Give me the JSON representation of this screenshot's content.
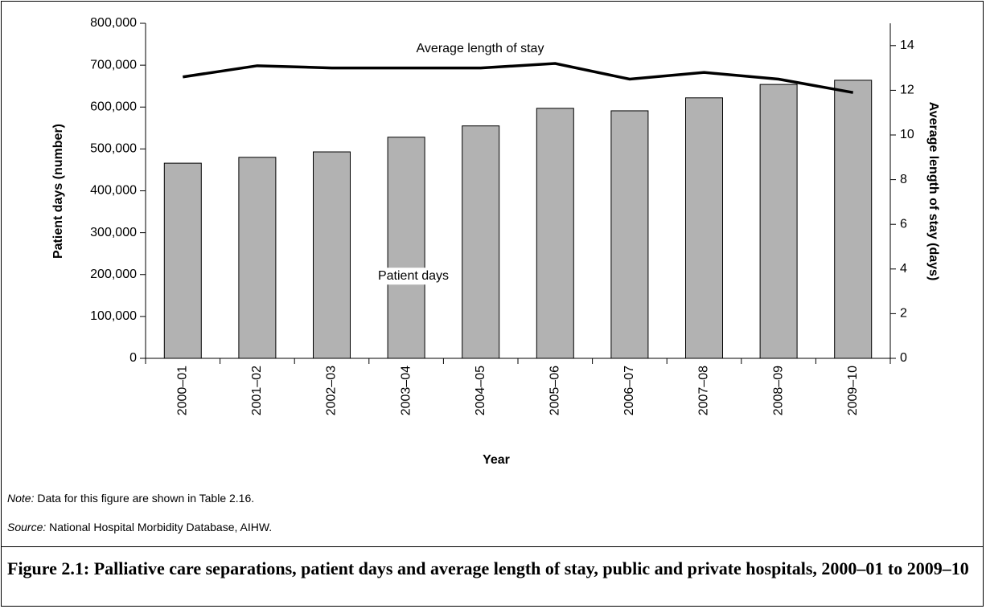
{
  "chart_data": {
    "type": "bar-line",
    "categories": [
      "2000–01",
      "2001–02",
      "2002–03",
      "2003–04",
      "2004–05",
      "2005–06",
      "2006–07",
      "2007–08",
      "2008–09",
      "2009–10"
    ],
    "series": [
      {
        "name": "Patient days",
        "type": "bar",
        "color": "#b2b2b2",
        "values": [
          466000,
          480000,
          493000,
          528000,
          555000,
          597000,
          591000,
          622000,
          654000,
          664000
        ]
      },
      {
        "name": "Average length of stay",
        "type": "line",
        "axis": "y2",
        "color": "#000000",
        "values": [
          12.6,
          13.1,
          13.0,
          13.0,
          13.0,
          13.2,
          12.5,
          12.8,
          12.5,
          11.9
        ]
      }
    ],
    "xlabel": "Year",
    "ylabel": "Patient days (number)",
    "y2label": "Average length of stay (days)",
    "ylim": [
      0,
      800000
    ],
    "yticks": [
      0,
      {
        "value": 100000,
        "label": "100,000"
      },
      {
        "value": 200000,
        "label": "200,000"
      },
      {
        "value": 300000,
        "label": "300,000"
      },
      {
        "value": 400000,
        "label": "400,000"
      },
      {
        "value": 500000,
        "label": "500,000"
      },
      {
        "value": 600000,
        "label": "600,000"
      },
      {
        "value": 700000,
        "label": "700,000"
      },
      {
        "value": 800000,
        "label": "800,000"
      }
    ],
    "y2lim": [
      0,
      15
    ],
    "y2ticks": [
      0,
      2,
      4,
      6,
      8,
      10,
      12,
      14
    ]
  },
  "notes": {
    "note_label": "Note:",
    "note_text": " Data for this figure are shown in Table 2.16.",
    "source_label": "Source:",
    "source_text": " National Hospital Morbidity Database, AIHW."
  },
  "caption": "Figure 2.1: Palliative care separations, patient days and average length of stay, public and private hospitals, 2000–01 to 2009–10"
}
